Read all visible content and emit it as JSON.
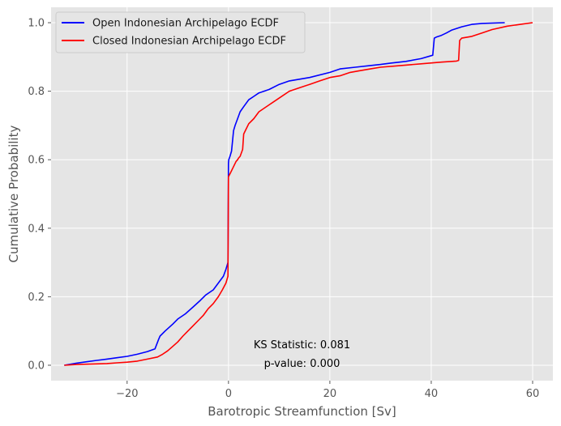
{
  "chart_data": {
    "type": "line",
    "xlabel": "Barotropic Streamfunction [Sv]",
    "ylabel": "Cumulative Probability",
    "xlim": [
      -35,
      64
    ],
    "ylim": [
      -0.045,
      1.045
    ],
    "xticks": [
      -20,
      0,
      20,
      40,
      60
    ],
    "xtick_labels": [
      "−20",
      "0",
      "20",
      "40",
      "60"
    ],
    "yticks": [
      0.0,
      0.2,
      0.4,
      0.6,
      0.8,
      1.0
    ],
    "ytick_labels": [
      "0.0",
      "0.2",
      "0.4",
      "0.6",
      "0.8",
      "1.0"
    ],
    "grid": true,
    "legend_position": "top-left",
    "annotations": [
      "KS Statistic: 0.081",
      "p-value: 0.000"
    ],
    "series": [
      {
        "name": "Open Indonesian Archipelago ECDF",
        "color": "#0000ff",
        "x": [
          -32.4,
          -30,
          -28,
          -26,
          -24,
          -22,
          -20,
          -18,
          -16,
          -14.5,
          -13.8,
          -13.5,
          -12.5,
          -11,
          -10,
          -8.5,
          -7,
          -5.5,
          -4.5,
          -3,
          -2,
          -1,
          -0.5,
          -0.1,
          0,
          0.05,
          0.3,
          0.6,
          1,
          1.3,
          1.8,
          2.3,
          3,
          4,
          5,
          6,
          8,
          10,
          12,
          14,
          16,
          20,
          22,
          25,
          28,
          30,
          32,
          35,
          38,
          40.3,
          40.6,
          41,
          42,
          43,
          44,
          46,
          48,
          50,
          54.5
        ],
        "y": [
          0.0,
          0.006,
          0.01,
          0.014,
          0.018,
          0.022,
          0.026,
          0.032,
          0.04,
          0.048,
          0.075,
          0.085,
          0.1,
          0.12,
          0.135,
          0.15,
          0.17,
          0.19,
          0.205,
          0.22,
          0.24,
          0.26,
          0.28,
          0.3,
          0.59,
          0.6,
          0.61,
          0.625,
          0.685,
          0.7,
          0.72,
          0.74,
          0.755,
          0.775,
          0.785,
          0.795,
          0.805,
          0.82,
          0.83,
          0.835,
          0.84,
          0.855,
          0.865,
          0.87,
          0.875,
          0.878,
          0.882,
          0.887,
          0.895,
          0.905,
          0.955,
          0.958,
          0.963,
          0.97,
          0.978,
          0.988,
          0.995,
          0.998,
          1.0
        ]
      },
      {
        "name": "Closed Indonesian Archipelago ECDF",
        "color": "#ff0000",
        "x": [
          -32.4,
          -30,
          -28,
          -26,
          -24,
          -22,
          -20,
          -18,
          -16,
          -14,
          -13,
          -12,
          -11,
          -10,
          -9,
          -8,
          -7,
          -6,
          -5,
          -4,
          -3,
          -2,
          -1.2,
          -0.5,
          -0.1,
          0,
          0.5,
          1,
          1.5,
          1.8,
          2,
          2.3,
          2.8,
          3,
          3.5,
          4,
          5,
          6,
          8,
          10,
          12,
          14,
          16,
          18,
          20,
          22,
          24,
          26,
          28,
          30,
          34,
          38,
          42,
          45,
          45.4,
          45.6,
          46,
          48,
          50,
          52,
          55,
          58,
          60
        ],
        "y": [
          0.0,
          0.002,
          0.003,
          0.004,
          0.005,
          0.007,
          0.009,
          0.012,
          0.018,
          0.024,
          0.032,
          0.042,
          0.055,
          0.068,
          0.085,
          0.1,
          0.115,
          0.13,
          0.145,
          0.165,
          0.18,
          0.2,
          0.22,
          0.24,
          0.26,
          0.55,
          0.565,
          0.58,
          0.595,
          0.6,
          0.605,
          0.61,
          0.63,
          0.675,
          0.69,
          0.705,
          0.72,
          0.74,
          0.76,
          0.78,
          0.8,
          0.81,
          0.82,
          0.83,
          0.84,
          0.845,
          0.855,
          0.86,
          0.865,
          0.87,
          0.875,
          0.88,
          0.885,
          0.888,
          0.89,
          0.948,
          0.955,
          0.96,
          0.97,
          0.98,
          0.99,
          0.996,
          1.0
        ]
      }
    ]
  }
}
